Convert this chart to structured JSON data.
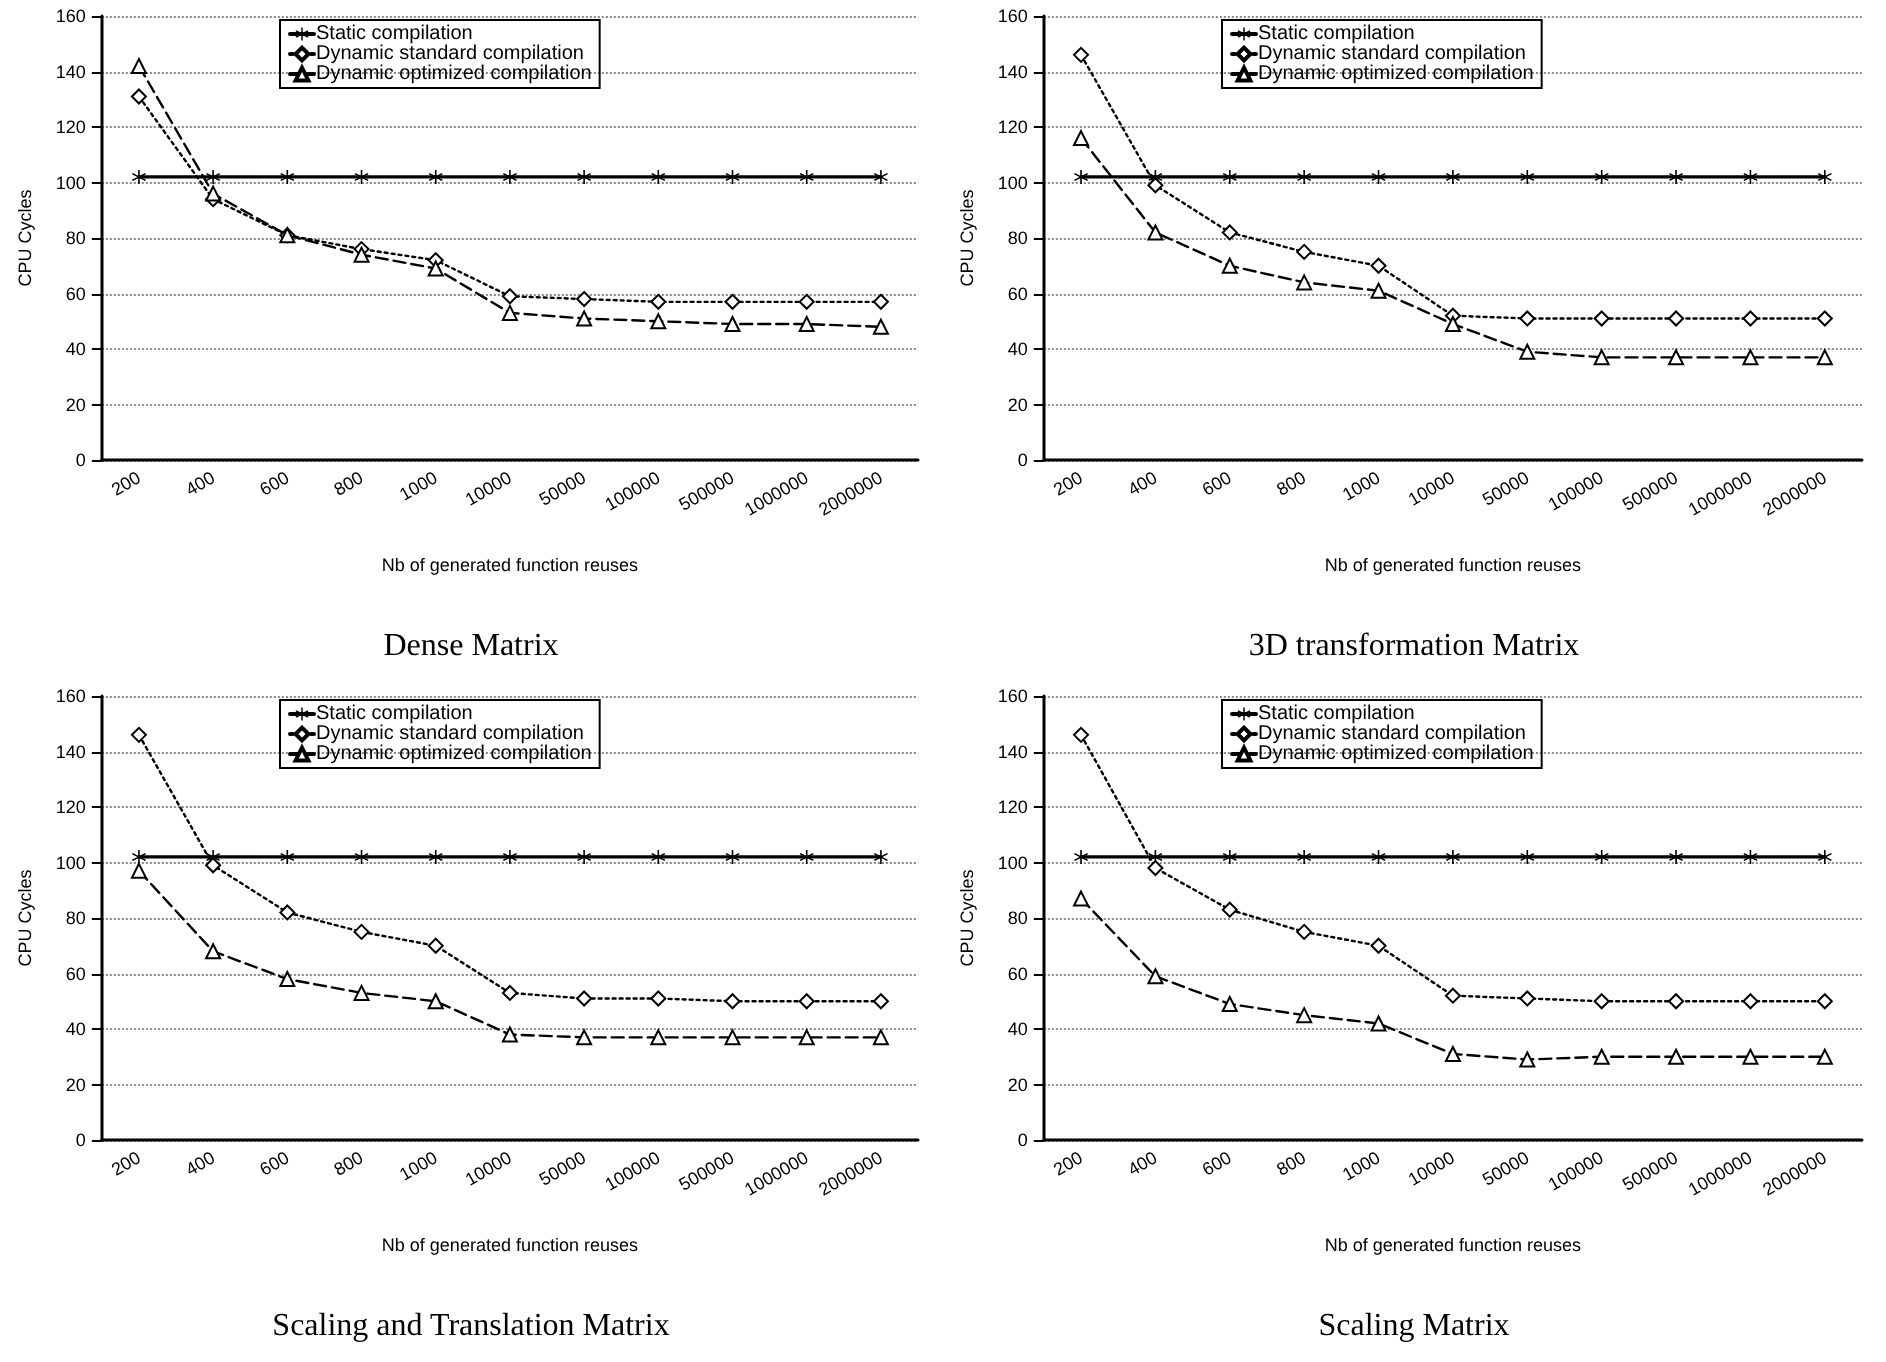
{
  "chart_data": [
    {
      "type": "line",
      "title": "Dense Matrix",
      "xlabel": "Nb of generated function reuses",
      "ylabel": "CPU Cycles",
      "categories": [
        "200",
        "400",
        "600",
        "800",
        "1000",
        "10000",
        "50000",
        "100000",
        "500000",
        "1000000",
        "2000000"
      ],
      "ylim": [
        0,
        160
      ],
      "yticks": [
        0,
        20,
        40,
        60,
        80,
        100,
        120,
        140,
        160
      ],
      "grid": "y",
      "legend": "top",
      "series": [
        {
          "name": "Static compilation",
          "color": "#000000",
          "marker": "star",
          "line_style": "solid",
          "values": [
            102,
            102,
            102,
            102,
            102,
            102,
            102,
            102,
            102,
            102,
            102
          ]
        },
        {
          "name": "Dynamic standard compilation",
          "color": "#000000",
          "marker": "diamond",
          "line_style": "dotted",
          "values": [
            131,
            94,
            81,
            76,
            72,
            59,
            58,
            57,
            57,
            57,
            57
          ]
        },
        {
          "name": "Dynamic optimized compilation",
          "color": "#000000",
          "marker": "triangle",
          "line_style": "dashed",
          "values": [
            142,
            96,
            81,
            74,
            69,
            53,
            51,
            50,
            49,
            49,
            48
          ]
        }
      ]
    },
    {
      "type": "line",
      "title": "3D transformation Matrix",
      "xlabel": "Nb of generated function reuses",
      "ylabel": "CPU Cycles",
      "categories": [
        "200",
        "400",
        "600",
        "800",
        "1000",
        "10000",
        "50000",
        "100000",
        "500000",
        "1000000",
        "2000000"
      ],
      "ylim": [
        0,
        160
      ],
      "yticks": [
        0,
        20,
        40,
        60,
        80,
        100,
        120,
        140,
        160
      ],
      "grid": "y",
      "legend": "top",
      "series": [
        {
          "name": "Static compilation",
          "color": "#000000",
          "marker": "star",
          "line_style": "solid",
          "values": [
            102,
            102,
            102,
            102,
            102,
            102,
            102,
            102,
            102,
            102,
            102
          ]
        },
        {
          "name": "Dynamic standard compilation",
          "color": "#000000",
          "marker": "diamond",
          "line_style": "dotted",
          "values": [
            146,
            99,
            82,
            75,
            70,
            52,
            51,
            51,
            51,
            51,
            51
          ]
        },
        {
          "name": "Dynamic optimized compilation",
          "color": "#000000",
          "marker": "triangle",
          "line_style": "dashed",
          "values": [
            116,
            82,
            70,
            64,
            61,
            49,
            39,
            37,
            37,
            37,
            37
          ]
        }
      ]
    },
    {
      "type": "line",
      "title": "Scaling and Translation Matrix",
      "xlabel": "Nb of generated function reuses",
      "ylabel": "CPU Cycles",
      "categories": [
        "200",
        "400",
        "600",
        "800",
        "1000",
        "10000",
        "50000",
        "100000",
        "500000",
        "1000000",
        "2000000"
      ],
      "ylim": [
        0,
        160
      ],
      "yticks": [
        0,
        20,
        40,
        60,
        80,
        100,
        120,
        140,
        160
      ],
      "grid": "y",
      "legend": "top",
      "series": [
        {
          "name": "Static compilation",
          "color": "#000000",
          "marker": "star",
          "line_style": "solid",
          "values": [
            102,
            102,
            102,
            102,
            102,
            102,
            102,
            102,
            102,
            102,
            102
          ]
        },
        {
          "name": "Dynamic standard compilation",
          "color": "#000000",
          "marker": "diamond",
          "line_style": "dotted",
          "values": [
            146,
            99,
            82,
            75,
            70,
            53,
            51,
            51,
            50,
            50,
            50
          ]
        },
        {
          "name": "Dynamic optimized compilation",
          "color": "#000000",
          "marker": "triangle",
          "line_style": "dashed",
          "values": [
            97,
            68,
            58,
            53,
            50,
            38,
            37,
            37,
            37,
            37,
            37
          ]
        }
      ]
    },
    {
      "type": "line",
      "title": "Scaling Matrix",
      "xlabel": "Nb of generated function reuses",
      "ylabel": "CPU Cycles",
      "categories": [
        "200",
        "400",
        "600",
        "800",
        "1000",
        "10000",
        "50000",
        "100000",
        "500000",
        "1000000",
        "2000000"
      ],
      "ylim": [
        0,
        160
      ],
      "yticks": [
        0,
        20,
        40,
        60,
        80,
        100,
        120,
        140,
        160
      ],
      "grid": "y",
      "legend": "top",
      "series": [
        {
          "name": "Static compilation",
          "color": "#000000",
          "marker": "star",
          "line_style": "solid",
          "values": [
            102,
            102,
            102,
            102,
            102,
            102,
            102,
            102,
            102,
            102,
            102
          ]
        },
        {
          "name": "Dynamic standard compilation",
          "color": "#000000",
          "marker": "diamond",
          "line_style": "dotted",
          "values": [
            146,
            98,
            83,
            75,
            70,
            52,
            51,
            50,
            50,
            50,
            50
          ]
        },
        {
          "name": "Dynamic optimized compilation",
          "color": "#000000",
          "marker": "triangle",
          "line_style": "dashed",
          "values": [
            87,
            59,
            49,
            45,
            42,
            31,
            29,
            30,
            30,
            30,
            30
          ]
        }
      ]
    }
  ]
}
